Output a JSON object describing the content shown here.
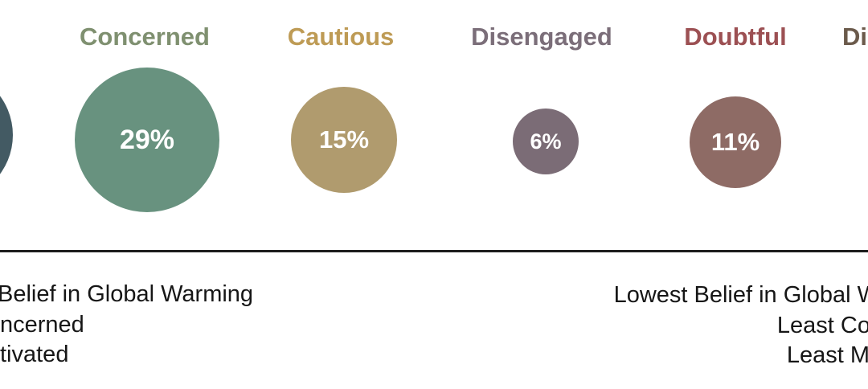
{
  "chart_data": {
    "type": "scatter",
    "subtype": "proportional-area bubble row (audience segmentation, partially cropped at left and right edges)",
    "categories": [
      "Concerned",
      "Cautious",
      "Disengaged",
      "Doubtful"
    ],
    "values": [
      29,
      15,
      6,
      11
    ],
    "value_labels": [
      "29%",
      "15%",
      "6%",
      "11%"
    ],
    "title": "",
    "xlabel": "",
    "ylabel": "",
    "legend_position": "none",
    "grid": false,
    "axis_annotation_left_fragments": [
      "Belief in Global Warming",
      "ncerned",
      "tivated"
    ],
    "axis_annotation_right_fragments": [
      "Lowest Belief in Global W",
      "Least Co",
      "Least M"
    ],
    "offscreen_partials": {
      "left_edge": "unlabeled dark slate circle sliver",
      "right_edge_label_fragment": "Di"
    }
  },
  "segments": [
    {
      "id": "alarmed-partial",
      "circle_color": "#435A63"
    },
    {
      "id": "concerned",
      "label": "Concerned",
      "percent": "29%",
      "circle_color": "#68927F",
      "label_color": "#7F9070"
    },
    {
      "id": "cautious",
      "label": "Cautious",
      "percent": "15%",
      "circle_color": "#B09B6E",
      "label_color": "#BE9B55"
    },
    {
      "id": "disengaged",
      "label": "Disengaged",
      "percent": "6%",
      "circle_color": "#7B6C76",
      "label_color": "#7B6E79"
    },
    {
      "id": "doubtful",
      "label": "Doubtful",
      "percent": "11%",
      "circle_color": "#8E6B65",
      "label_color": "#9C5053"
    },
    {
      "id": "dismissive-partial",
      "label": "Di",
      "label_color": "#6B5A4B"
    }
  ],
  "axis": {
    "left_lines": [
      "Belief in Global Warming",
      "ncerned",
      "tivated"
    ],
    "right_lines": [
      "Lowest Belief in Global W",
      "Least Co",
      "Least M"
    ]
  },
  "colors": {
    "background": "#FFFFFF",
    "divider_line": "#1D1D1D",
    "annotation_text": "#161616",
    "percent_text": "#FFFFFF"
  }
}
